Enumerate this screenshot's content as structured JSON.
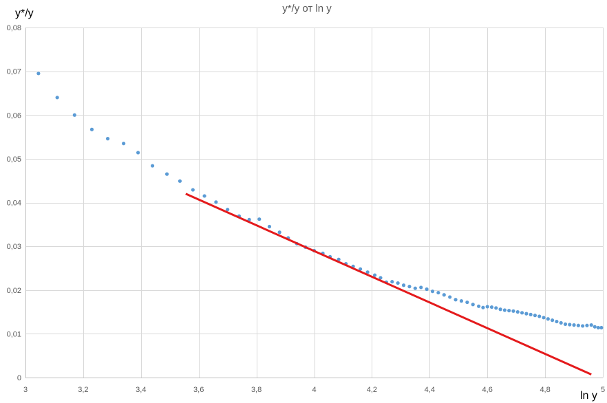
{
  "chart_data": {
    "type": "scatter",
    "title": "y*/y от ln y",
    "xlabel": "ln y",
    "ylabel": "y*/y",
    "xlim": [
      3,
      5
    ],
    "ylim": [
      0,
      0.08
    ],
    "x_ticks": [
      "3",
      "3,2",
      "3,4",
      "3,6",
      "3,8",
      "4",
      "4,2",
      "4,4",
      "4,6",
      "4,8",
      "5"
    ],
    "x_tick_values": [
      3,
      3.2,
      3.4,
      3.6,
      3.8,
      4,
      4.2,
      4.4,
      4.6,
      4.8,
      5
    ],
    "y_ticks": [
      "0",
      "0,01",
      "0,02",
      "0,03",
      "0,04",
      "0,05",
      "0,06",
      "0,07",
      "0,08"
    ],
    "y_tick_values": [
      0,
      0.01,
      0.02,
      0.03,
      0.04,
      0.05,
      0.06,
      0.07,
      0.08
    ],
    "grid": true,
    "legend": "none",
    "series": [
      {
        "type": "scatter",
        "color": "#5b9bd5",
        "points": [
          [
            3.045,
            0.0695
          ],
          [
            3.11,
            0.064
          ],
          [
            3.17,
            0.06
          ],
          [
            3.23,
            0.0567
          ],
          [
            3.285,
            0.0546
          ],
          [
            3.34,
            0.0535
          ],
          [
            3.39,
            0.0514
          ],
          [
            3.44,
            0.0484
          ],
          [
            3.49,
            0.0465
          ],
          [
            3.535,
            0.0449
          ],
          [
            3.58,
            0.0429
          ],
          [
            3.62,
            0.0415
          ],
          [
            3.66,
            0.0401
          ],
          [
            3.7,
            0.0384
          ],
          [
            3.74,
            0.0369
          ],
          [
            3.775,
            0.0361
          ],
          [
            3.81,
            0.0362
          ],
          [
            3.845,
            0.0345
          ],
          [
            3.88,
            0.0332
          ],
          [
            3.91,
            0.0319
          ],
          [
            3.94,
            0.0306
          ],
          [
            3.97,
            0.0298
          ],
          [
            4.0,
            0.029
          ],
          [
            4.03,
            0.0284
          ],
          [
            4.055,
            0.0276
          ],
          [
            4.085,
            0.027
          ],
          [
            4.11,
            0.026
          ],
          [
            4.135,
            0.0254
          ],
          [
            4.16,
            0.0248
          ],
          [
            4.185,
            0.0241
          ],
          [
            4.21,
            0.0234
          ],
          [
            4.23,
            0.0228
          ],
          [
            4.25,
            0.0218
          ],
          [
            4.27,
            0.0219
          ],
          [
            4.29,
            0.0216
          ],
          [
            4.31,
            0.0211
          ],
          [
            4.33,
            0.0208
          ],
          [
            4.35,
            0.0204
          ],
          [
            4.37,
            0.0206
          ],
          [
            4.39,
            0.0202
          ],
          [
            4.41,
            0.0197
          ],
          [
            4.43,
            0.0194
          ],
          [
            4.45,
            0.0189
          ],
          [
            4.47,
            0.0184
          ],
          [
            4.49,
            0.0178
          ],
          [
            4.51,
            0.0175
          ],
          [
            4.53,
            0.0172
          ],
          [
            4.55,
            0.0167
          ],
          [
            4.57,
            0.0163
          ],
          [
            4.585,
            0.016
          ],
          [
            4.6,
            0.0162
          ],
          [
            4.615,
            0.0161
          ],
          [
            4.63,
            0.0159
          ],
          [
            4.645,
            0.0156
          ],
          [
            4.66,
            0.0154
          ],
          [
            4.675,
            0.0153
          ],
          [
            4.69,
            0.0152
          ],
          [
            4.705,
            0.015
          ],
          [
            4.72,
            0.0148
          ],
          [
            4.735,
            0.0146
          ],
          [
            4.75,
            0.0144
          ],
          [
            4.765,
            0.0142
          ],
          [
            4.78,
            0.014
          ],
          [
            4.795,
            0.0137
          ],
          [
            4.81,
            0.0134
          ],
          [
            4.825,
            0.0131
          ],
          [
            4.84,
            0.0128
          ],
          [
            4.855,
            0.0125
          ],
          [
            4.87,
            0.0122
          ],
          [
            4.885,
            0.0121
          ],
          [
            4.9,
            0.012
          ],
          [
            4.915,
            0.0119
          ],
          [
            4.93,
            0.0118
          ],
          [
            4.945,
            0.0119
          ],
          [
            4.96,
            0.012
          ],
          [
            4.972,
            0.0116
          ],
          [
            4.984,
            0.0114
          ],
          [
            4.995,
            0.0114
          ]
        ]
      },
      {
        "type": "line",
        "color": "#e41a1c",
        "points": [
          [
            3.555,
            0.042
          ],
          [
            4.96,
            0.0007
          ]
        ]
      }
    ]
  }
}
